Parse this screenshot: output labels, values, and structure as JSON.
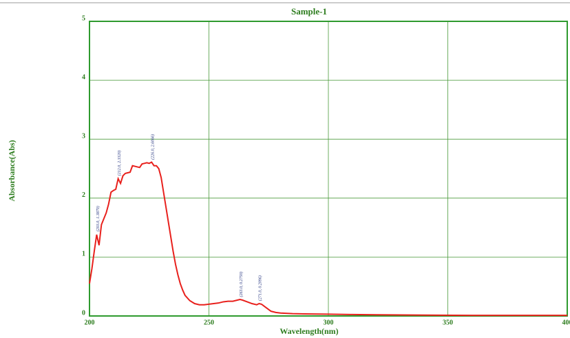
{
  "chart_data": {
    "type": "line",
    "title": "Sample-1",
    "x_label": "Wavelength(nm)",
    "y_label": "Absorbance(Abs)",
    "xlim": [
      200,
      400
    ],
    "ylim": [
      0,
      5
    ],
    "xticks": [
      200,
      250,
      300,
      350,
      400
    ],
    "yticks": [
      0,
      1,
      2,
      3,
      4,
      5
    ],
    "grid": true,
    "series": [
      {
        "color": "#e8201c",
        "x": [
          200,
          201,
          202,
          203,
          204,
          205,
          206,
          207,
          208,
          209,
          210,
          211,
          212,
          213,
          214,
          215,
          216,
          217,
          218,
          219,
          220,
          221,
          222,
          223,
          224,
          225,
          226,
          227,
          228,
          229,
          230,
          231,
          232,
          233,
          234,
          235,
          236,
          237,
          238,
          239,
          240,
          242,
          244,
          246,
          248,
          250,
          252,
          254,
          256,
          258,
          260,
          262,
          263,
          264,
          266,
          268,
          270,
          271,
          272,
          274,
          276,
          278,
          280,
          285,
          290,
          300,
          310,
          320,
          340,
          360,
          380,
          400
        ],
        "values": [
          0.55,
          0.8,
          1.1,
          1.38,
          1.2,
          1.55,
          1.65,
          1.75,
          1.9,
          2.1,
          2.13,
          2.15,
          2.33,
          2.25,
          2.38,
          2.42,
          2.43,
          2.44,
          2.55,
          2.54,
          2.53,
          2.52,
          2.58,
          2.59,
          2.6,
          2.59,
          2.61,
          2.55,
          2.55,
          2.5,
          2.35,
          2.1,
          1.85,
          1.6,
          1.35,
          1.1,
          0.88,
          0.7,
          0.55,
          0.44,
          0.35,
          0.26,
          0.21,
          0.19,
          0.19,
          0.2,
          0.21,
          0.22,
          0.24,
          0.25,
          0.25,
          0.27,
          0.28,
          0.27,
          0.24,
          0.21,
          0.19,
          0.21,
          0.2,
          0.14,
          0.08,
          0.06,
          0.05,
          0.04,
          0.035,
          0.03,
          0.025,
          0.02,
          0.015,
          0.01,
          0.01,
          0.01
        ]
      }
    ],
    "peaks": [
      {
        "x": 203,
        "y": 1.3879,
        "label": "(203.0, 1.3879)"
      },
      {
        "x": 212,
        "y": 2.332,
        "label": "(212.0, 2.3320)"
      },
      {
        "x": 226,
        "y": 2.6066,
        "label": "(226.0, 2.6066)"
      },
      {
        "x": 263,
        "y": 0.275,
        "label": "(263.0, 0.2750)"
      },
      {
        "x": 271,
        "y": 0.2096,
        "label": "(271.0, 0.2096)"
      }
    ]
  }
}
